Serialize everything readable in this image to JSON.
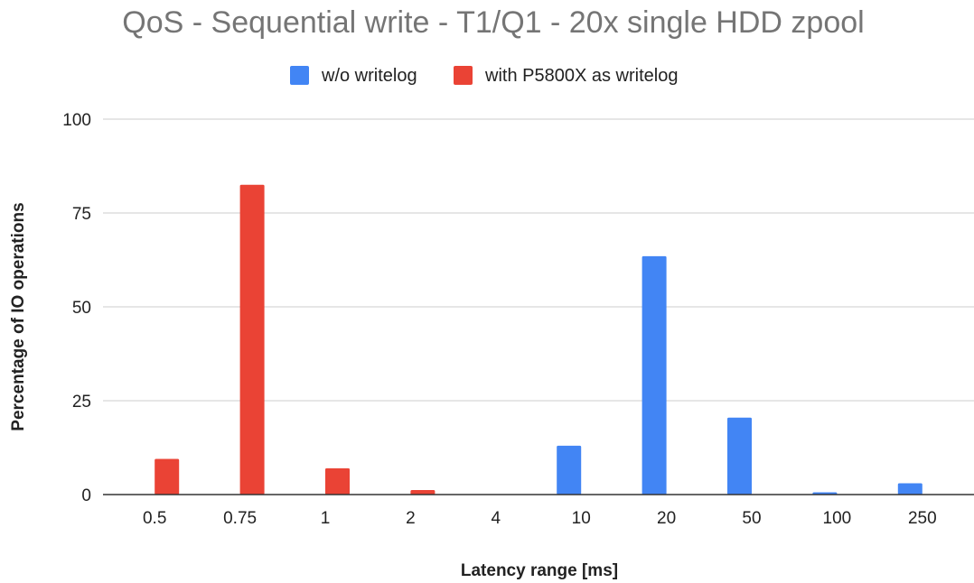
{
  "chart_data": {
    "type": "bar",
    "title": "QoS - Sequential write - T1/Q1 - 20x single HDD zpool",
    "xlabel": "Latency range [ms]",
    "ylabel": "Percentage of IO operations",
    "categories": [
      "0.5",
      "0.75",
      "1",
      "2",
      "4",
      "10",
      "20",
      "50",
      "100",
      "250"
    ],
    "ylim": [
      0,
      100
    ],
    "yticks": [
      0,
      25,
      50,
      75,
      100
    ],
    "grid": true,
    "legend_position": "top",
    "series": [
      {
        "name": "w/o writelog",
        "color": "#4285f4",
        "values": [
          0,
          0,
          0,
          0,
          0,
          13,
          63.5,
          20.5,
          0.6,
          3
        ]
      },
      {
        "name": "with P5800X as writelog",
        "color": "#ea4335",
        "values": [
          9.5,
          82.5,
          7,
          1.2,
          0,
          0,
          0,
          0,
          0,
          0
        ]
      }
    ]
  }
}
